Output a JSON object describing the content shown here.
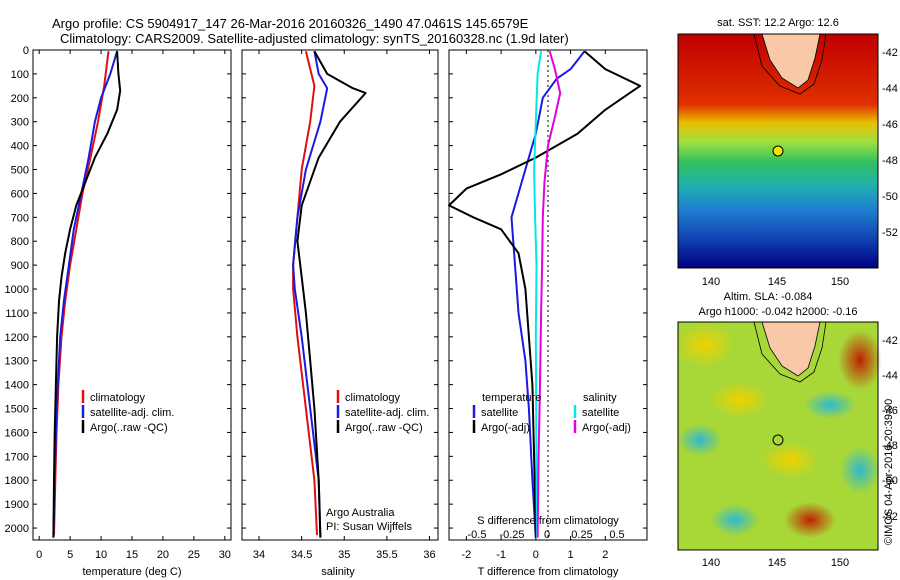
{
  "header": {
    "line1": "Argo profile: CS 5904917_147 26-Mar-2016 20160326_1490 47.0461S 145.6579E",
    "line2": "Climatology: CARS2009. Satellite-adjusted climatology: synTS_20160328.nc (1.9d later)"
  },
  "colors": {
    "climatology": "#e01010",
    "satellite": "#1a1ae0",
    "argo": "#000000",
    "satellite_s": "#00e8e8",
    "argo_s": "#e000e0"
  },
  "credits": {
    "line1": "Argo Australia",
    "line2": "PI: Susan Wijffels",
    "vertical": "©IMOS 04-Apr-2016 20:39:00"
  },
  "maps": {
    "sst_title": "sat. SST: 12.2  Argo: 12.6",
    "sla_title1": "Altim. SLA: -0.084",
    "sla_title2": "Argo h1000: -0.042 h2000: -0.16",
    "lat_ticks": [
      "-42",
      "-44",
      "-46",
      "-48",
      "-50",
      "-52"
    ],
    "lon_ticks": [
      "140",
      "145",
      "150"
    ],
    "float_lat": -47.0461,
    "float_lon": 145.6579
  },
  "chart_data": [
    {
      "type": "line",
      "name": "temperature",
      "xlabel": "temperature (deg C)",
      "ylabel": "",
      "xlim": [
        -1,
        31
      ],
      "ylim": [
        2050,
        0
      ],
      "xticks": [
        0,
        5,
        10,
        15,
        20,
        25,
        30
      ],
      "yticks": [
        0,
        100,
        200,
        300,
        400,
        500,
        600,
        700,
        800,
        900,
        1000,
        1100,
        1200,
        1300,
        1400,
        1500,
        1600,
        1700,
        1800,
        1900,
        2000
      ],
      "legend": [
        "climatology",
        "satellite-adj. clim.",
        "Argo(..raw -QC)"
      ],
      "series": [
        {
          "name": "climatology",
          "points": [
            [
              11.2,
              5
            ],
            [
              10.5,
              150
            ],
            [
              9.5,
              300
            ],
            [
              8.3,
              450
            ],
            [
              7.0,
              600
            ],
            [
              6.0,
              750
            ],
            [
              5.0,
              900
            ],
            [
              4.2,
              1050
            ],
            [
              3.6,
              1200
            ],
            [
              3.1,
              1400
            ],
            [
              2.8,
              1600
            ],
            [
              2.6,
              1800
            ],
            [
              2.4,
              2030
            ]
          ]
        },
        {
          "name": "satellite-adj. clim.",
          "points": [
            [
              12.6,
              5
            ],
            [
              11.5,
              100
            ],
            [
              10.0,
              200
            ],
            [
              9.0,
              300
            ],
            [
              8.0,
              450
            ],
            [
              6.8,
              600
            ],
            [
              5.6,
              750
            ],
            [
              4.8,
              900
            ],
            [
              4.0,
              1050
            ],
            [
              3.4,
              1200
            ],
            [
              3.0,
              1400
            ],
            [
              2.7,
              1600
            ],
            [
              2.5,
              1800
            ],
            [
              2.3,
              2040
            ]
          ]
        },
        {
          "name": "Argo(..raw -QC)",
          "points": [
            [
              12.6,
              5
            ],
            [
              12.8,
              100
            ],
            [
              13.1,
              170
            ],
            [
              12.6,
              250
            ],
            [
              11.0,
              350
            ],
            [
              9.0,
              450
            ],
            [
              7.5,
              550
            ],
            [
              6.0,
              650
            ],
            [
              5.0,
              750
            ],
            [
              4.2,
              850
            ],
            [
              3.6,
              950
            ],
            [
              3.2,
              1050
            ],
            [
              2.9,
              1200
            ],
            [
              2.7,
              1400
            ],
            [
              2.5,
              1600
            ],
            [
              2.4,
              1800
            ],
            [
              2.3,
              2040
            ]
          ]
        }
      ]
    },
    {
      "type": "line",
      "name": "salinity",
      "xlabel": "salinity",
      "ylabel": "",
      "xlim": [
        33.8,
        36.1
      ],
      "ylim": [
        2050,
        0
      ],
      "xticks": [
        34,
        34.5,
        35,
        35.5,
        36
      ],
      "legend": [
        "climatology",
        "satellite-adj. clim.",
        "Argo(..raw -QC)"
      ],
      "series": [
        {
          "name": "climatology",
          "points": [
            [
              34.55,
              5
            ],
            [
              34.65,
              150
            ],
            [
              34.6,
              300
            ],
            [
              34.5,
              500
            ],
            [
              34.45,
              700
            ],
            [
              34.4,
              900
            ],
            [
              34.4,
              1000
            ],
            [
              34.45,
              1200
            ],
            [
              34.55,
              1500
            ],
            [
              34.65,
              1800
            ],
            [
              34.68,
              2030
            ]
          ]
        },
        {
          "name": "satellite-adj. clim.",
          "points": [
            [
              34.65,
              5
            ],
            [
              34.7,
              100
            ],
            [
              34.8,
              160
            ],
            [
              34.72,
              300
            ],
            [
              34.55,
              500
            ],
            [
              34.45,
              700
            ],
            [
              34.4,
              900
            ],
            [
              34.42,
              1000
            ],
            [
              34.5,
              1200
            ],
            [
              34.6,
              1500
            ],
            [
              34.7,
              1800
            ],
            [
              34.72,
              2040
            ]
          ]
        },
        {
          "name": "Argo(..raw -QC)",
          "points": [
            [
              34.65,
              5
            ],
            [
              34.8,
              100
            ],
            [
              35.1,
              160
            ],
            [
              35.25,
              180
            ],
            [
              34.95,
              300
            ],
            [
              34.7,
              450
            ],
            [
              34.5,
              650
            ],
            [
              34.45,
              800
            ],
            [
              34.5,
              950
            ],
            [
              34.55,
              1100
            ],
            [
              34.6,
              1300
            ],
            [
              34.65,
              1500
            ],
            [
              34.7,
              1800
            ],
            [
              34.72,
              2040
            ]
          ]
        }
      ]
    },
    {
      "type": "line",
      "name": "differences",
      "xlabel": "T difference from climatology",
      "xlabel_top": "S difference from climatology",
      "xlim": [
        -2.5,
        3.2
      ],
      "ylim": [
        2050,
        0
      ],
      "xticks": [
        -2,
        -1,
        0,
        1,
        2
      ],
      "xticks_s": [
        "-0.5",
        "-0.25",
        "0",
        "0.25",
        "0.5"
      ],
      "legend": [
        "temperature",
        "satellite",
        "Argo(-adj)",
        "salinity",
        "satellite",
        "Argo(-adj)"
      ],
      "series": [
        {
          "name": "temperature satellite",
          "points": [
            [
              1.4,
              5
            ],
            [
              1.0,
              80
            ],
            [
              0.6,
              120
            ],
            [
              0.2,
              200
            ],
            [
              0.0,
              350
            ],
            [
              -0.4,
              550
            ],
            [
              -0.7,
              700
            ],
            [
              -0.6,
              900
            ],
            [
              -0.5,
              1100
            ],
            [
              -0.3,
              1300
            ],
            [
              -0.2,
              1500
            ],
            [
              -0.1,
              1800
            ],
            [
              0.0,
              2040
            ]
          ]
        },
        {
          "name": "temperature Argo(-adj)",
          "points": [
            [
              1.4,
              5
            ],
            [
              2.0,
              80
            ],
            [
              3.0,
              150
            ],
            [
              2.0,
              250
            ],
            [
              1.2,
              350
            ],
            [
              0.0,
              450
            ],
            [
              -1.0,
              520
            ],
            [
              -2.0,
              580
            ],
            [
              -2.5,
              650
            ],
            [
              -1.8,
              700
            ],
            [
              -1.0,
              750
            ],
            [
              -0.5,
              850
            ],
            [
              -0.3,
              1000
            ],
            [
              -0.2,
              1200
            ],
            [
              -0.1,
              1400
            ],
            [
              -0.05,
              1700
            ],
            [
              0.0,
              2040
            ]
          ]
        },
        {
          "name": "salinity satellite",
          "points": [
            [
              0.15,
              5
            ],
            [
              0.05,
              100
            ],
            [
              0.0,
              300
            ],
            [
              -0.05,
              500
            ],
            [
              -0.02,
              700
            ],
            [
              0.02,
              900
            ],
            [
              0.0,
              1200
            ],
            [
              0.01,
              1500
            ],
            [
              0.02,
              1800
            ],
            [
              0.03,
              2040
            ]
          ]
        },
        {
          "name": "salinity Argo(-adj)",
          "points": [
            [
              0.4,
              5
            ],
            [
              0.55,
              80
            ],
            [
              0.7,
              180
            ],
            [
              0.55,
              280
            ],
            [
              0.35,
              400
            ],
            [
              0.25,
              550
            ],
            [
              0.2,
              700
            ],
            [
              0.18,
              900
            ],
            [
              0.15,
              1100
            ],
            [
              0.12,
              1400
            ],
            [
              0.08,
              1700
            ],
            [
              0.05,
              2040
            ]
          ]
        }
      ]
    }
  ]
}
